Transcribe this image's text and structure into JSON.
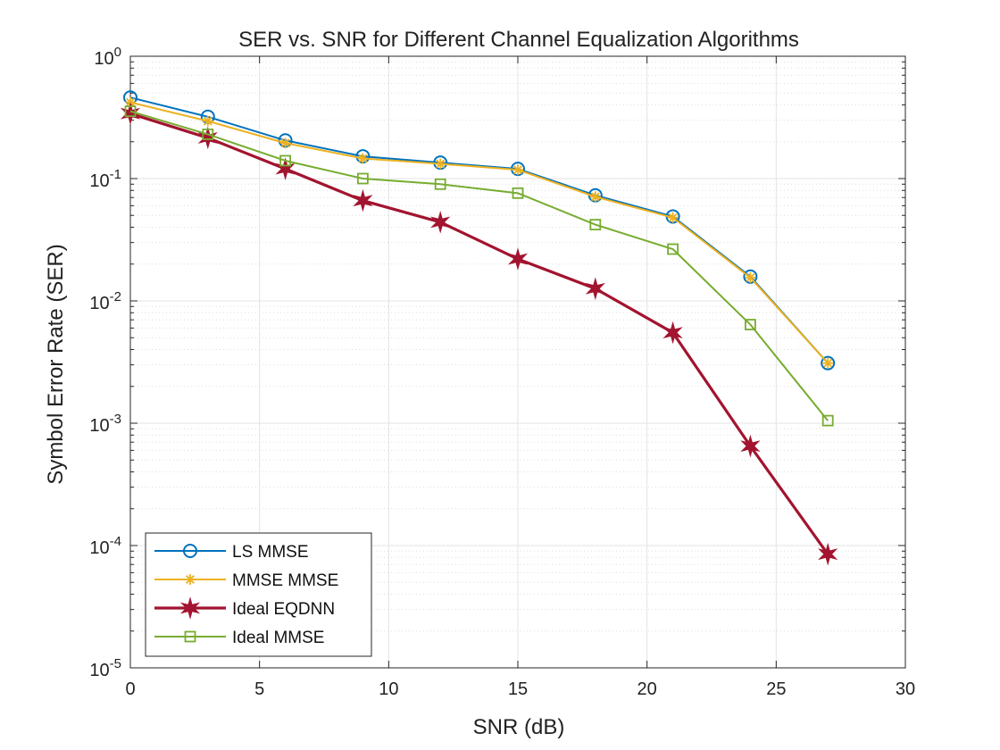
{
  "chart_data": {
    "type": "line",
    "title": "SER vs. SNR for Different Channel Equalization Algorithms",
    "xlabel": "SNR (dB)",
    "ylabel": "Symbol Error Rate (SER)",
    "xlim": [
      0,
      30
    ],
    "ylim": [
      1e-05,
      1
    ],
    "yscale": "log",
    "grid": true,
    "legend_position": "bottom-left",
    "x_ticks": [
      0,
      5,
      10,
      15,
      20,
      25,
      30
    ],
    "y_ticks": [
      {
        "value": 1,
        "base": "10",
        "exp": "0"
      },
      {
        "value": 0.1,
        "base": "10",
        "exp": "-1"
      },
      {
        "value": 0.01,
        "base": "10",
        "exp": "-2"
      },
      {
        "value": 0.001,
        "base": "10",
        "exp": "-3"
      },
      {
        "value": 0.0001,
        "base": "10",
        "exp": "-4"
      },
      {
        "value": 1e-05,
        "base": "10",
        "exp": "-5"
      }
    ],
    "x": [
      0,
      3,
      6,
      9,
      12,
      15,
      18,
      21,
      24,
      27
    ],
    "series": [
      {
        "name": "LS MMSE",
        "color": "#0072BD",
        "marker": "circle",
        "values": [
          0.46,
          0.32,
          0.205,
          0.152,
          0.135,
          0.12,
          0.073,
          0.049,
          0.0158,
          0.0031
        ]
      },
      {
        "name": "MMSE MMSE",
        "color": "#EDB120",
        "marker": "asterisk",
        "values": [
          0.42,
          0.295,
          0.195,
          0.146,
          0.132,
          0.118,
          0.071,
          0.048,
          0.0155,
          0.0031
        ]
      },
      {
        "name": "Ideal EQDNN",
        "color": "#A2142F",
        "marker": "hexagram",
        "values": [
          0.34,
          0.215,
          0.12,
          0.066,
          0.044,
          0.022,
          0.0126,
          0.0055,
          0.00065,
          8.5e-05
        ]
      },
      {
        "name": "Ideal MMSE",
        "color": "#77AC30",
        "marker": "square",
        "values": [
          0.355,
          0.23,
          0.14,
          0.1,
          0.09,
          0.076,
          0.042,
          0.0265,
          0.0064,
          0.00105
        ]
      }
    ]
  }
}
